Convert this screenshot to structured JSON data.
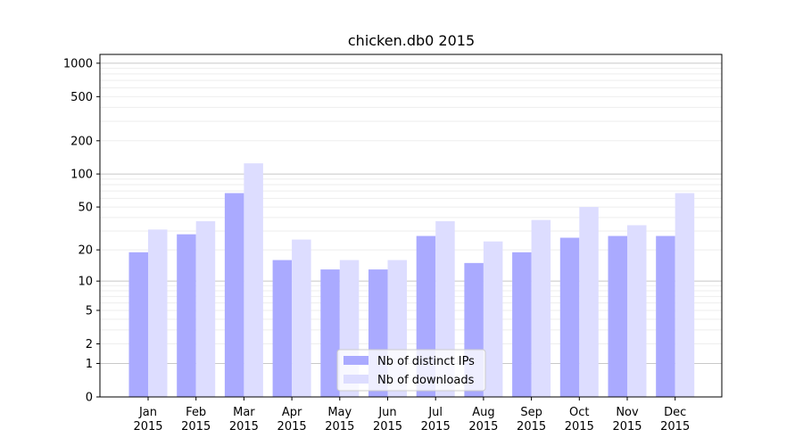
{
  "chart_data": {
    "type": "bar",
    "title": "chicken.db0 2015",
    "y_scale": "symlog",
    "y_ticks": [
      0,
      1,
      2,
      5,
      10,
      20,
      50,
      100,
      200,
      500,
      1000
    ],
    "ylim": [
      0,
      1200
    ],
    "grid": true,
    "legend_position": "lower-center",
    "categories": [
      {
        "month": "Jan",
        "year": "2015"
      },
      {
        "month": "Feb",
        "year": "2015"
      },
      {
        "month": "Mar",
        "year": "2015"
      },
      {
        "month": "Apr",
        "year": "2015"
      },
      {
        "month": "May",
        "year": "2015"
      },
      {
        "month": "Jun",
        "year": "2015"
      },
      {
        "month": "Jul",
        "year": "2015"
      },
      {
        "month": "Aug",
        "year": "2015"
      },
      {
        "month": "Sep",
        "year": "2015"
      },
      {
        "month": "Oct",
        "year": "2015"
      },
      {
        "month": "Nov",
        "year": "2015"
      },
      {
        "month": "Dec",
        "year": "2015"
      }
    ],
    "series": [
      {
        "name": "Nb of distinct IPs",
        "color": "#aaaaff",
        "values": [
          19,
          28,
          67,
          16,
          13,
          13,
          27,
          15,
          19,
          26,
          27,
          27
        ]
      },
      {
        "name": "Nb of downloads",
        "color": "#ddddff",
        "values": [
          31,
          37,
          125,
          25,
          16,
          16,
          37,
          24,
          38,
          50,
          34,
          67
        ]
      }
    ]
  }
}
